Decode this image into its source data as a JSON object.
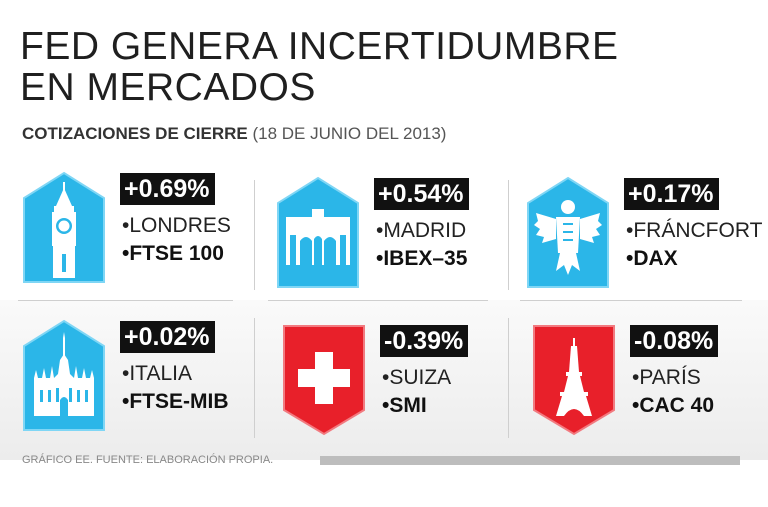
{
  "title": {
    "line1": "FED GENERA INCERTIDUMBRE",
    "line2": "EN MERCADOS"
  },
  "subtitle": {
    "bold": "COTIZACIONES DE CIERRE",
    "light": " (18 DE JUNIO DEL 2013)"
  },
  "markets": [
    {
      "change": "+0.69%",
      "place": "•LONDRES",
      "index": "•FTSE 100",
      "icon": "big-ben-icon",
      "color": "#2bb6e8"
    },
    {
      "change": "+0.54%",
      "place": "•MADRID",
      "index": "•IBEX–35",
      "icon": "puerta-de-alcala-icon",
      "color": "#2bb6e8"
    },
    {
      "change": "+0.17%",
      "place": "•FRÁNCFORT",
      "index": "•DAX",
      "icon": "german-eagle-icon",
      "color": "#2bb6e8"
    },
    {
      "change": "+0.02%",
      "place": "•ITALIA",
      "index": "•FTSE-MIB",
      "icon": "milan-cathedral-icon",
      "color": "#2bb6e8"
    },
    {
      "change": "-0.39%",
      "place": "•SUIZA",
      "index": "•SMI",
      "icon": "swiss-cross-icon",
      "color": "#e8202a"
    },
    {
      "change": "-0.08%",
      "place": "•PARÍS",
      "index": "•CAC 40",
      "icon": "eiffel-tower-icon",
      "color": "#e8202a"
    }
  ],
  "footer": "GRÁFICO EE. FUENTE: ELABORACIÓN PROPIA."
}
